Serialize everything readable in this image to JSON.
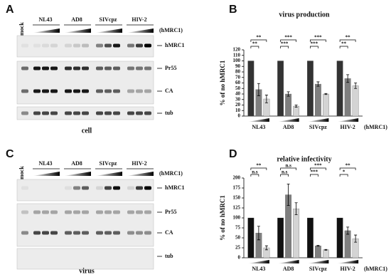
{
  "panels": [
    {
      "letter": "A",
      "mock": "mock",
      "groups": [
        "NL43",
        "AD8",
        "SIVcpz",
        "HIV-2"
      ],
      "treatment": "(hMRC1)",
      "bands": [
        "hMRC1",
        "Pr55",
        "CA",
        "tub"
      ],
      "caption": "cell"
    },
    {
      "letter": "C",
      "mock": "mock",
      "groups": [
        "NL43",
        "AD8",
        "SIVcpz",
        "HIV-2"
      ],
      "treatment": "(hMRC1)",
      "bands": [
        "hMRC1",
        "Pr55",
        "CA",
        "tub"
      ],
      "caption": "virus"
    }
  ],
  "chart_data": [
    {
      "type": "bar",
      "letter": "B",
      "title": "virus production",
      "y_label": "% of no hMRC1",
      "treatment": "(hMRC1)",
      "categories": [
        "NL43",
        "AD8",
        "SIVcpz",
        "HIV-2"
      ],
      "series": [
        {
          "color": "#333333",
          "values": [
            100,
            100,
            100,
            100
          ],
          "errors": [
            null,
            null,
            null,
            null
          ]
        },
        {
          "color": "#7f7f7f",
          "values": [
            48,
            40,
            58,
            68
          ],
          "errors": [
            11,
            4,
            4,
            7
          ]
        },
        {
          "color": "#d4d4d4",
          "values": [
            31,
            18,
            40,
            55
          ],
          "errors": [
            7,
            2,
            1,
            5
          ]
        }
      ],
      "significance": [
        [
          "**",
          "**"
        ],
        [
          "***",
          "***"
        ],
        [
          "***",
          "***"
        ],
        [
          "**",
          "**"
        ]
      ],
      "ylim": [
        0,
        120
      ],
      "yticks": [
        0,
        10,
        20,
        30,
        40,
        50,
        60,
        70,
        80,
        90,
        100,
        110,
        120
      ]
    },
    {
      "type": "bar",
      "letter": "D",
      "title": "relative infectivity",
      "y_label": "% of no hMRC1",
      "treatment": "(hMRC1)",
      "categories": [
        "NL43",
        "AD8",
        "SIVcpz",
        "HIV-2"
      ],
      "series": [
        {
          "color": "#111111",
          "values": [
            100,
            100,
            100,
            100
          ],
          "errors": [
            null,
            null,
            null,
            null
          ]
        },
        {
          "color": "#7f7f7f",
          "values": [
            62,
            158,
            30,
            68
          ],
          "errors": [
            17,
            27,
            1,
            9
          ]
        },
        {
          "color": "#d4d4d4",
          "values": [
            25,
            123,
            20,
            48
          ],
          "errors": [
            5,
            15,
            1,
            9
          ]
        }
      ],
      "significance": [
        [
          "**",
          "n.s"
        ],
        [
          "n.s",
          "n.s"
        ],
        [
          "***",
          "***"
        ],
        [
          "**",
          "*"
        ]
      ],
      "ylim": [
        0,
        200
      ],
      "yticks": [
        0,
        25,
        50,
        75,
        100,
        125,
        150,
        175,
        200
      ]
    }
  ]
}
